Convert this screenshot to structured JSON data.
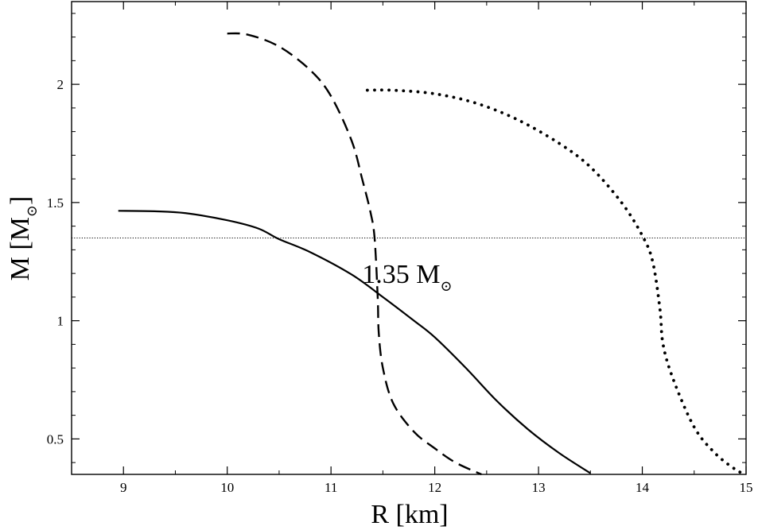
{
  "chart_data": {
    "type": "line",
    "xlabel": "R [km]",
    "ylabel": "M [M",
    "ylabel_sub": "⊙",
    "ylabel_close": "]",
    "xlim": [
      8.5,
      15
    ],
    "ylim": [
      0.35,
      2.35
    ],
    "xticks": [
      9,
      10,
      11,
      12,
      13,
      14,
      15
    ],
    "yticks": [
      0.5,
      1,
      1.5,
      2
    ],
    "ytick_labels": [
      "0.5",
      "1",
      "1.5",
      "2"
    ],
    "grid": false,
    "colors": {
      "line": "#000000",
      "background": "#ffffff"
    },
    "reference_line": {
      "y": 1.35,
      "style": "dotted-thin"
    },
    "annotation": {
      "text": "1.35 M",
      "sub": "⊙",
      "x": 11.3,
      "y": 1.2
    },
    "series": [
      {
        "style": "solid",
        "points": [
          [
            8.95,
            1.465
          ],
          [
            9.3,
            1.463
          ],
          [
            9.6,
            1.455
          ],
          [
            10.0,
            1.425
          ],
          [
            10.3,
            1.39
          ],
          [
            10.5,
            1.345
          ],
          [
            10.8,
            1.29
          ],
          [
            11.2,
            1.195
          ],
          [
            11.5,
            1.1
          ],
          [
            11.8,
            1.0
          ],
          [
            12.0,
            0.93
          ],
          [
            12.3,
            0.8
          ],
          [
            12.6,
            0.66
          ],
          [
            12.9,
            0.54
          ],
          [
            13.2,
            0.44
          ],
          [
            13.5,
            0.355
          ]
        ]
      },
      {
        "style": "dashed",
        "points": [
          [
            10.0,
            2.215
          ],
          [
            10.2,
            2.21
          ],
          [
            10.5,
            2.16
          ],
          [
            10.8,
            2.06
          ],
          [
            11.0,
            1.95
          ],
          [
            11.2,
            1.76
          ],
          [
            11.3,
            1.6
          ],
          [
            11.38,
            1.46
          ],
          [
            11.42,
            1.35
          ],
          [
            11.45,
            1.1
          ],
          [
            11.46,
            0.95
          ],
          [
            11.5,
            0.8
          ],
          [
            11.6,
            0.65
          ],
          [
            11.8,
            0.53
          ],
          [
            12.0,
            0.46
          ],
          [
            12.2,
            0.4
          ],
          [
            12.45,
            0.35
          ]
        ]
      },
      {
        "style": "dotted",
        "points": [
          [
            11.35,
            1.975
          ],
          [
            11.6,
            1.975
          ],
          [
            12.0,
            1.96
          ],
          [
            12.4,
            1.92
          ],
          [
            12.8,
            1.85
          ],
          [
            13.2,
            1.75
          ],
          [
            13.5,
            1.65
          ],
          [
            13.8,
            1.5
          ],
          [
            14.0,
            1.36
          ],
          [
            14.1,
            1.25
          ],
          [
            14.17,
            1.05
          ],
          [
            14.2,
            0.9
          ],
          [
            14.3,
            0.75
          ],
          [
            14.5,
            0.55
          ],
          [
            14.7,
            0.44
          ],
          [
            14.9,
            0.37
          ],
          [
            15.0,
            0.35
          ]
        ]
      }
    ]
  }
}
